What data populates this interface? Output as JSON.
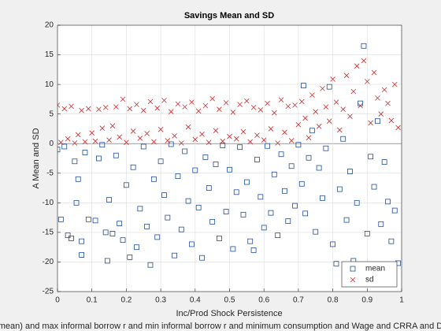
{
  "chart_data": {
    "type": "scatter",
    "title": "Savings Mean and SD",
    "x_label": "Inc/Prod Shock Persistence",
    "x_label_2": "mean) and max informal borrow r and min informal borrow r and minimum consumption and Wage and CRRA and D",
    "y_label": "A Mean and SD",
    "xlim": [
      0,
      1
    ],
    "xticks": [
      0,
      0.1,
      0.2,
      0.3,
      0.4,
      0.5,
      0.6,
      0.7,
      0.8,
      0.9,
      1
    ],
    "ylim": [
      -25,
      20
    ],
    "yticks": [
      -25,
      -20,
      -15,
      -10,
      -5,
      0,
      5,
      10,
      15,
      20
    ],
    "grid": true,
    "legend_position": "southeast",
    "series": [
      {
        "name": "mean",
        "color": "#1f4e9c",
        "marker": "square",
        "x": [
          0.0,
          0.01,
          0.02,
          0.03,
          0.04,
          0.05,
          0.055,
          0.06,
          0.07,
          0.07,
          0.08,
          0.09,
          0.11,
          0.12,
          0.13,
          0.14,
          0.145,
          0.15,
          0.16,
          0.17,
          0.18,
          0.19,
          0.2,
          0.21,
          0.22,
          0.23,
          0.24,
          0.25,
          0.26,
          0.27,
          0.28,
          0.29,
          0.3,
          0.31,
          0.32,
          0.33,
          0.34,
          0.35,
          0.36,
          0.37,
          0.38,
          0.39,
          0.4,
          0.41,
          0.42,
          0.43,
          0.44,
          0.45,
          0.46,
          0.47,
          0.48,
          0.49,
          0.5,
          0.51,
          0.52,
          0.53,
          0.54,
          0.55,
          0.56,
          0.57,
          0.58,
          0.59,
          0.6,
          0.61,
          0.62,
          0.63,
          0.64,
          0.65,
          0.66,
          0.67,
          0.68,
          0.69,
          0.7,
          0.71,
          0.715,
          0.72,
          0.73,
          0.74,
          0.75,
          0.76,
          0.77,
          0.78,
          0.79,
          0.8,
          0.81,
          0.82,
          0.83,
          0.84,
          0.85,
          0.86,
          0.87,
          0.88,
          0.89,
          0.9,
          0.91,
          0.92,
          0.93,
          0.94,
          0.95,
          0.96,
          0.97,
          0.98,
          0.99
        ],
        "values": [
          -1,
          -12.8,
          -0.5,
          -15.5,
          -16,
          -3,
          -10,
          -6,
          -16.5,
          -18.8,
          -1.5,
          -12.8,
          -13,
          -2.5,
          -0.2,
          -15,
          -19.8,
          -9.5,
          -15.2,
          -2,
          -13.5,
          -16.3,
          -7,
          -19.2,
          -4,
          -17.5,
          -11,
          -0.5,
          -14,
          -20.5,
          -6,
          -15.8,
          -3,
          -8.7,
          -12.5,
          -0.1,
          -18.9,
          -5.5,
          -14.5,
          -1.3,
          -9.7,
          -17,
          -4.5,
          -10.8,
          -19.3,
          -2.3,
          -7.5,
          -13.2,
          -3.5,
          -16,
          -0.3,
          -11.5,
          -4.4,
          -17.8,
          -8.2,
          -0.6,
          -12,
          -6.5,
          -16.5,
          -18,
          -2.7,
          -9,
          -14.2,
          -0.4,
          -11.7,
          -5.2,
          -15.5,
          -1.8,
          -8,
          -13.1,
          -3.8,
          -10.5,
          -0.2,
          -6.8,
          9.8,
          -11.8,
          -2.4,
          2.2,
          -14.9,
          -4.1,
          -9.2,
          -0.8,
          9.6,
          -17,
          -20.3,
          -7.7,
          0.8,
          -12.9,
          -4.7,
          -19.8,
          -10,
          6.8,
          16.5,
          -15.2,
          -2.2,
          -7.3,
          3.8,
          -13.6,
          -3.1,
          -9.8,
          -16.5,
          -11.3,
          -20.2
        ]
      },
      {
        "name": "sd",
        "color": "#d62728",
        "marker": "x",
        "x": [
          0.0,
          0.01,
          0.02,
          0.03,
          0.04,
          0.05,
          0.06,
          0.07,
          0.08,
          0.09,
          0.1,
          0.11,
          0.12,
          0.13,
          0.14,
          0.15,
          0.16,
          0.17,
          0.18,
          0.19,
          0.2,
          0.21,
          0.22,
          0.23,
          0.24,
          0.25,
          0.26,
          0.27,
          0.28,
          0.29,
          0.3,
          0.31,
          0.32,
          0.33,
          0.34,
          0.35,
          0.36,
          0.37,
          0.38,
          0.39,
          0.4,
          0.41,
          0.42,
          0.43,
          0.44,
          0.45,
          0.46,
          0.47,
          0.48,
          0.49,
          0.5,
          0.51,
          0.52,
          0.53,
          0.54,
          0.55,
          0.56,
          0.57,
          0.58,
          0.59,
          0.6,
          0.61,
          0.62,
          0.63,
          0.64,
          0.65,
          0.66,
          0.67,
          0.68,
          0.69,
          0.7,
          0.71,
          0.72,
          0.73,
          0.74,
          0.75,
          0.76,
          0.77,
          0.78,
          0.79,
          0.8,
          0.81,
          0.82,
          0.83,
          0.84,
          0.85,
          0.86,
          0.87,
          0.88,
          0.89,
          0.9,
          0.91,
          0.92,
          0.93,
          0.94,
          0.95,
          0.96,
          0.97,
          0.98,
          0.99
        ],
        "values": [
          6.5,
          0.2,
          5.9,
          0.8,
          6.3,
          0.1,
          1.5,
          5.6,
          0.3,
          5.9,
          1.8,
          0.4,
          5.8,
          2.6,
          6.1,
          0.6,
          3,
          6.2,
          1.1,
          7.5,
          0.2,
          5.9,
          2.1,
          6.6,
          0.9,
          5.6,
          1.7,
          7.1,
          0.3,
          6,
          2.4,
          7.3,
          0.5,
          5.4,
          1.3,
          6.7,
          0.1,
          6.2,
          2.8,
          7,
          0.7,
          5.5,
          1.6,
          6.4,
          0.2,
          7.6,
          2.2,
          5.8,
          0.4,
          6.9,
          1.2,
          5.3,
          0.8,
          6.6,
          2,
          7.2,
          0.3,
          6.1,
          1.4,
          5.7,
          0.6,
          6.8,
          2.5,
          5.2,
          0.1,
          7.4,
          1.9,
          6.3,
          0.5,
          6.5,
          3.2,
          7.1,
          4.3,
          1,
          8.2,
          5.4,
          2.9,
          9.3,
          6.2,
          3.8,
          10.9,
          7,
          2.3,
          5.8,
          11.5,
          4.6,
          8.8,
          13.1,
          6.4,
          14,
          10.5,
          3.5,
          12,
          7.7,
          5,
          9.1,
          6.8,
          3.9,
          10,
          2.7
        ]
      }
    ]
  }
}
